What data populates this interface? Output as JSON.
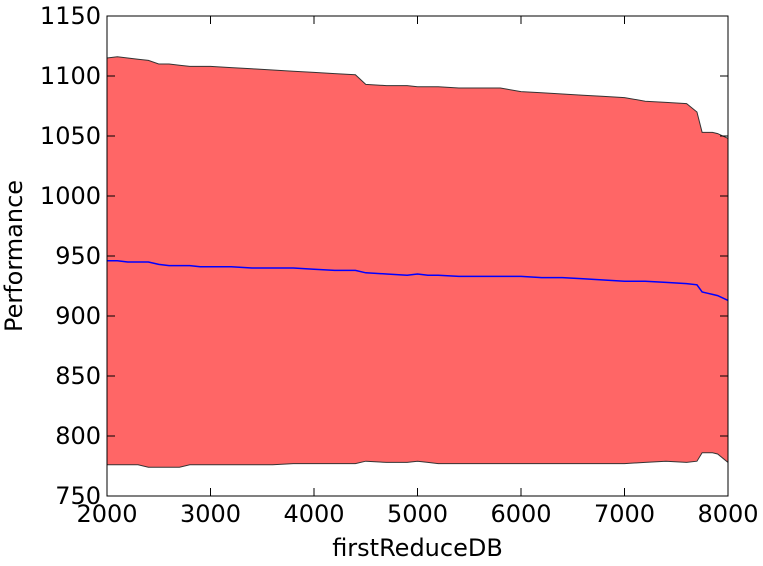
{
  "chart_data": {
    "type": "area",
    "title": "",
    "xlabel": "firstReduceDB",
    "ylabel": "Performance",
    "xlim": [
      2000,
      8000
    ],
    "ylim": [
      750,
      1150
    ],
    "xticks": [
      2000,
      3000,
      4000,
      5000,
      6000,
      7000,
      8000
    ],
    "yticks": [
      750,
      800,
      850,
      900,
      950,
      1000,
      1050,
      1100,
      1150
    ],
    "grid": false,
    "legend": "none",
    "x": [
      2000,
      2100,
      2200,
      2300,
      2400,
      2500,
      2600,
      2700,
      2800,
      2900,
      3000,
      3200,
      3400,
      3600,
      3800,
      4000,
      4200,
      4400,
      4500,
      4700,
      4900,
      5000,
      5100,
      5200,
      5400,
      5600,
      5800,
      6000,
      6200,
      6400,
      6600,
      6800,
      7000,
      7200,
      7400,
      7600,
      7700,
      7750,
      7800,
      7850,
      7900,
      8000
    ],
    "series": [
      {
        "role": "mean",
        "color": "#0000ff",
        "values": [
          946,
          946,
          945,
          945,
          945,
          943,
          942,
          942,
          942,
          941,
          941,
          941,
          940,
          940,
          940,
          939,
          938,
          938,
          936,
          935,
          934,
          935,
          934,
          934,
          933,
          933,
          933,
          933,
          932,
          932,
          931,
          930,
          929,
          929,
          928,
          927,
          926,
          920,
          919,
          918,
          917,
          913
        ]
      },
      {
        "role": "upper",
        "color": "#ff6666",
        "values": [
          1115,
          1116,
          1115,
          1114,
          1113,
          1110,
          1110,
          1109,
          1108,
          1108,
          1108,
          1107,
          1106,
          1105,
          1104,
          1103,
          1102,
          1101,
          1093,
          1092,
          1092,
          1091,
          1091,
          1091,
          1090,
          1090,
          1090,
          1087,
          1086,
          1085,
          1084,
          1083,
          1082,
          1079,
          1078,
          1077,
          1070,
          1053,
          1053,
          1053,
          1052,
          1048
        ]
      },
      {
        "role": "lower",
        "color": "#ff6666",
        "values": [
          776,
          776,
          776,
          776,
          774,
          774,
          774,
          774,
          776,
          776,
          776,
          776,
          776,
          776,
          777,
          777,
          777,
          777,
          779,
          778,
          778,
          779,
          778,
          777,
          777,
          777,
          777,
          777,
          777,
          777,
          777,
          777,
          777,
          778,
          779,
          778,
          779,
          786,
          786,
          786,
          785,
          778
        ]
      }
    ]
  }
}
